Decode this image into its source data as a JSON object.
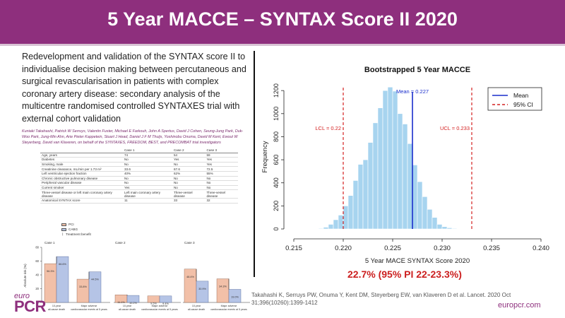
{
  "header": {
    "title": "5 Year MACCE – SYNTAX Score II 2020"
  },
  "paper": {
    "title": "Redevelopment and validation of the SYNTAX score II to individualise decision making between percutaneous and surgical revascularisation in patients with complex coronary artery disease: secondary analysis of the multicentre randomised controlled SYNTAXES trial with external cohort validation",
    "authors": "Kuniaki Takahashi, Patrick W Serruys, Valentin Fuster, Michael E Farkouh, John A Spertus, David J Cohen, Seung-Jung Park, Duk-Woo Park, Jung-Min Ahn, Arie Pieter Kappetein, Stuart J Head, Daniel J F M Thuijs, Yoshinobu Onuma, David M Kent, Ewout W Steyerberg, David van Klaveren, on behalf of the SYNTAXES, FREEDOM, BEST, and PRECOMBAT trial investigators"
  },
  "patient_table": {
    "columns": [
      "",
      "Case 1",
      "Case 2",
      "Case 3"
    ],
    "rows": [
      [
        "Age, years",
        "74",
        "54",
        "59"
      ],
      [
        "Diabetes",
        "No",
        "Yes",
        "Yes"
      ],
      [
        "Smoking, male",
        "No",
        "No",
        "Yes"
      ],
      [
        "Creatinine clearance, mL/min per 1.73 m²",
        "33.6",
        "67.6",
        "72.5"
      ],
      [
        "Left ventricular ejection fraction",
        "40%",
        "62%",
        "55%"
      ],
      [
        "Chronic obstructive pulmonary disease",
        "No",
        "No",
        "No"
      ],
      [
        "Peripheral vascular disease",
        "No",
        "No",
        "No"
      ],
      [
        "Current smoker",
        "Yes",
        "No",
        "No"
      ],
      [
        "Three-vessel disease or left main coronary artery disease",
        "Left main coronary artery disease",
        "Three-vessel disease",
        "Three-vessel disease"
      ],
      [
        "Anatomical SYNTAX score",
        "11",
        "33",
        "32"
      ]
    ]
  },
  "mini_legend": {
    "pci": "PCI",
    "cabg": "CABG",
    "treatment_benefit": "Treatment benefit"
  },
  "mini_chart": {
    "type": "bar",
    "title": "",
    "ylabel": "Absolute risk (%)",
    "ylim": [
      0,
      80
    ],
    "yticks": [
      "0",
      "20",
      "40",
      "60",
      "80"
    ],
    "categories": [
      "10-year all-cause death",
      "Major adverse cardiovascular events at 5 years"
    ],
    "cases": [
      {
        "name": "Case 1",
        "pci": [
          56.3,
          33.8
        ],
        "cabg": [
          66.6,
          44.5
        ],
        "pci_label": [
          "56.3%",
          "33.8%"
        ],
        "cabg_label": [
          "66.6%",
          "44.5%"
        ]
      },
      {
        "name": "Case 2",
        "pci": [
          11.1,
          9.5
        ],
        "cabg": [
          10.2,
          9.4
        ],
        "pci_label": [
          "11.1%",
          "9.5%"
        ],
        "cabg_label": [
          "10.2%",
          "9.4%"
        ]
      },
      {
        "name": "Case 3",
        "pci": [
          48.4,
          34.3
        ],
        "cabg": [
          30.9,
          19.0
        ],
        "pci_label": [
          "48.4%",
          "34.3%"
        ],
        "cabg_label": [
          "30.9%",
          "19.0%"
        ]
      }
    ],
    "xtick_labels": [
      "10-year all-cause death",
      "Major adverse cardiovascular events at 5 years"
    ],
    "colors": {
      "pci": "#f2c0a8",
      "cabg": "#b5c4e6",
      "benefit": "#222222"
    }
  },
  "chart_data": {
    "type": "histogram",
    "title": "Bootstrapped 5 Year MACCE",
    "xlabel": "5 Year MACE SYNTAX Score 2020",
    "ylabel": "Frequency",
    "xlim": [
      0.215,
      0.24
    ],
    "ylim": [
      0,
      1250
    ],
    "xticks": [
      "0.215",
      "0.220",
      "0.225",
      "0.230",
      "0.235",
      "0.240"
    ],
    "yticks": [
      "0",
      "200",
      "400",
      "600",
      "800",
      "1000",
      "1200"
    ],
    "bin_width": 0.0005,
    "bins_start": 0.2175,
    "counts": [
      5,
      15,
      40,
      80,
      120,
      200,
      290,
      420,
      560,
      600,
      750,
      920,
      1050,
      1200,
      1230,
      1195,
      1000,
      910,
      740,
      555,
      410,
      280,
      170,
      100,
      40,
      20,
      10,
      5
    ],
    "mean": 0.227,
    "lcl": 0.22,
    "ucl": 0.233,
    "mean_label": "Mean = 0.227",
    "lcl_label": "LCL = 0.22",
    "ucl_label": "UCL = 0.233",
    "legend": [
      {
        "label": "Mean",
        "style": "solid",
        "color": "#1a2ecc"
      },
      {
        "label": "95% CI",
        "style": "dashed",
        "color": "#d42020"
      }
    ],
    "legend_position": "top-right",
    "colors": {
      "bar": "#a7d4ef",
      "bar_edge": "#ffffff",
      "mean": "#1a2ecc",
      "ci": "#d42020"
    }
  },
  "result": {
    "text": "22.7% (95% PI 22-23.3%)"
  },
  "citation": "Takahashi K, Serruys PW, Onuma Y, Kent DM, Steyerberg EW, van Klaveren D et al. Lancet. 2020 Oct 31;396(10260):1399-1412",
  "brand": {
    "logo_top": "euro",
    "logo_main": "PCR",
    "url": "europcr.com"
  }
}
